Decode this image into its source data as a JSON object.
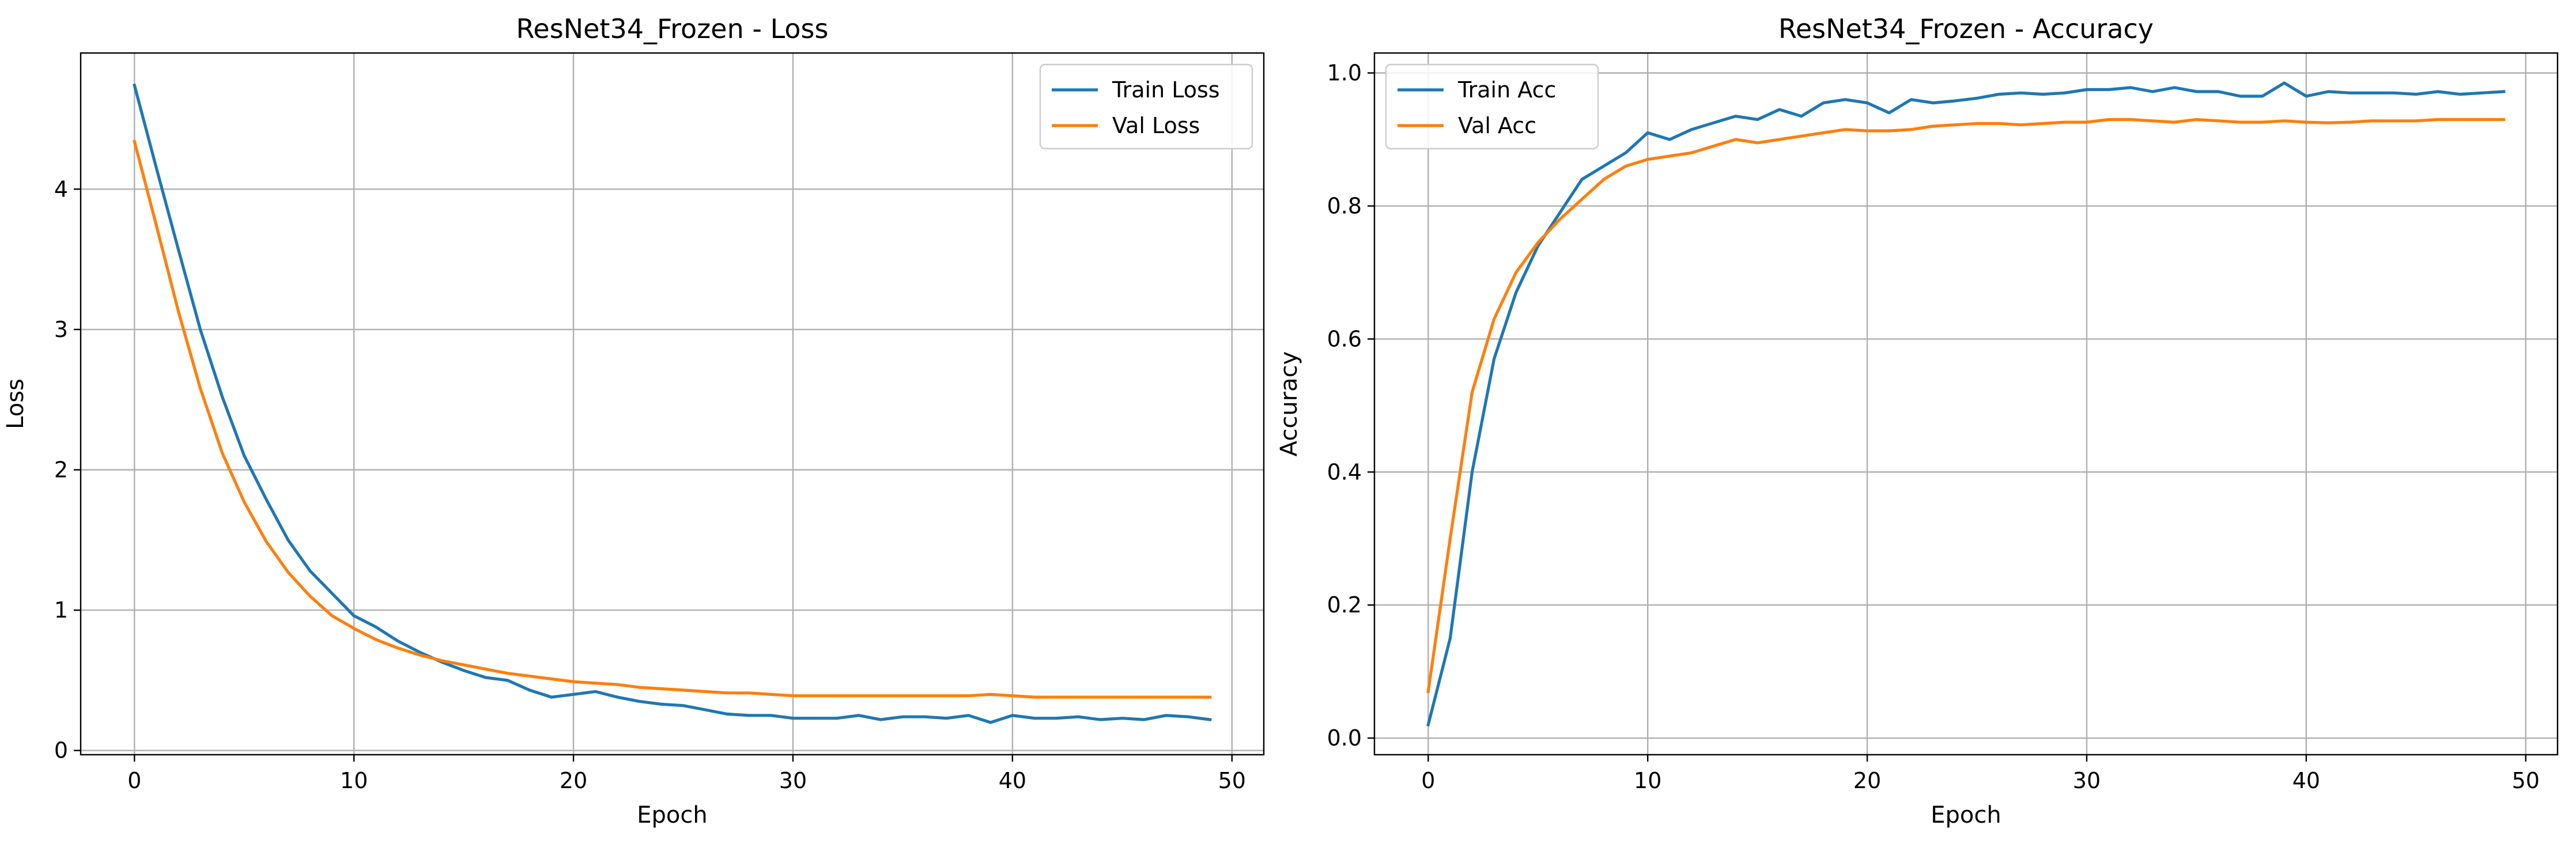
{
  "colors": {
    "train": "#1f77b4",
    "val": "#ff7f0e",
    "grid": "#b0b0b0",
    "axes": "#000000"
  },
  "chart_data": [
    {
      "type": "line",
      "title": "ResNet34_Frozen - Loss",
      "xlabel": "Epoch",
      "ylabel": "Loss",
      "xlim": [
        -2.45,
        51.45
      ],
      "ylim": [
        -0.03,
        4.97
      ],
      "xticks": [
        0,
        10,
        20,
        30,
        40,
        50
      ],
      "yticks": [
        0,
        1,
        2,
        3,
        4
      ],
      "grid": true,
      "legend_position": "top-right",
      "x": [
        0,
        1,
        2,
        3,
        4,
        5,
        6,
        7,
        8,
        9,
        10,
        11,
        12,
        13,
        14,
        15,
        16,
        17,
        18,
        19,
        20,
        21,
        22,
        23,
        24,
        25,
        26,
        27,
        28,
        29,
        30,
        31,
        32,
        33,
        34,
        35,
        36,
        37,
        38,
        39,
        40,
        41,
        42,
        43,
        44,
        45,
        46,
        47,
        48,
        49
      ],
      "series": [
        {
          "name": "Train Loss",
          "color_key": "train",
          "values": [
            4.74,
            4.15,
            3.57,
            3.0,
            2.52,
            2.1,
            1.79,
            1.5,
            1.28,
            1.12,
            0.96,
            0.88,
            0.78,
            0.7,
            0.63,
            0.57,
            0.52,
            0.5,
            0.43,
            0.38,
            0.4,
            0.42,
            0.38,
            0.35,
            0.33,
            0.32,
            0.29,
            0.26,
            0.25,
            0.25,
            0.23,
            0.23,
            0.23,
            0.25,
            0.22,
            0.24,
            0.24,
            0.23,
            0.25,
            0.2,
            0.25,
            0.23,
            0.23,
            0.24,
            0.22,
            0.23,
            0.22,
            0.25,
            0.24,
            0.22
          ]
        },
        {
          "name": "Val Loss",
          "color_key": "val",
          "values": [
            4.34,
            3.74,
            3.13,
            2.58,
            2.12,
            1.77,
            1.49,
            1.27,
            1.1,
            0.96,
            0.87,
            0.79,
            0.73,
            0.68,
            0.64,
            0.61,
            0.58,
            0.55,
            0.53,
            0.51,
            0.49,
            0.48,
            0.47,
            0.45,
            0.44,
            0.43,
            0.42,
            0.41,
            0.41,
            0.4,
            0.39,
            0.39,
            0.39,
            0.39,
            0.39,
            0.39,
            0.39,
            0.39,
            0.39,
            0.4,
            0.39,
            0.38,
            0.38,
            0.38,
            0.38,
            0.38,
            0.38,
            0.38,
            0.38,
            0.38
          ]
        }
      ]
    },
    {
      "type": "line",
      "title": "ResNet34_Frozen - Accuracy",
      "xlabel": "Epoch",
      "ylabel": "Accuracy",
      "xlim": [
        -2.45,
        51.45
      ],
      "ylim": [
        -0.025,
        1.03
      ],
      "xticks": [
        0,
        10,
        20,
        30,
        40,
        50
      ],
      "yticks": [
        0.0,
        0.2,
        0.4,
        0.6,
        0.8,
        1.0
      ],
      "ytick_labels": [
        "0.0",
        "0.2",
        "0.4",
        "0.6",
        "0.8",
        "1.0"
      ],
      "grid": true,
      "legend_position": "top-left",
      "x": [
        0,
        1,
        2,
        3,
        4,
        5,
        6,
        7,
        8,
        9,
        10,
        11,
        12,
        13,
        14,
        15,
        16,
        17,
        18,
        19,
        20,
        21,
        22,
        23,
        24,
        25,
        26,
        27,
        28,
        29,
        30,
        31,
        32,
        33,
        34,
        35,
        36,
        37,
        38,
        39,
        40,
        41,
        42,
        43,
        44,
        45,
        46,
        47,
        48,
        49
      ],
      "series": [
        {
          "name": "Train Acc",
          "color_key": "train",
          "values": [
            0.02,
            0.15,
            0.4,
            0.57,
            0.67,
            0.74,
            0.79,
            0.84,
            0.86,
            0.88,
            0.91,
            0.9,
            0.915,
            0.925,
            0.935,
            0.93,
            0.945,
            0.935,
            0.955,
            0.96,
            0.955,
            0.94,
            0.96,
            0.955,
            0.958,
            0.962,
            0.968,
            0.97,
            0.968,
            0.97,
            0.975,
            0.975,
            0.978,
            0.972,
            0.978,
            0.972,
            0.972,
            0.965,
            0.965,
            0.985,
            0.965,
            0.972,
            0.97,
            0.97,
            0.97,
            0.968,
            0.972,
            0.968,
            0.97,
            0.972
          ]
        },
        {
          "name": "Val Acc",
          "color_key": "val",
          "values": [
            0.07,
            0.3,
            0.52,
            0.63,
            0.7,
            0.745,
            0.78,
            0.81,
            0.84,
            0.86,
            0.87,
            0.875,
            0.88,
            0.89,
            0.9,
            0.895,
            0.9,
            0.905,
            0.91,
            0.915,
            0.913,
            0.913,
            0.915,
            0.92,
            0.922,
            0.924,
            0.924,
            0.922,
            0.924,
            0.926,
            0.926,
            0.93,
            0.93,
            0.928,
            0.926,
            0.93,
            0.928,
            0.926,
            0.926,
            0.928,
            0.926,
            0.925,
            0.926,
            0.928,
            0.928,
            0.928,
            0.93,
            0.93,
            0.93,
            0.93
          ]
        }
      ]
    }
  ]
}
